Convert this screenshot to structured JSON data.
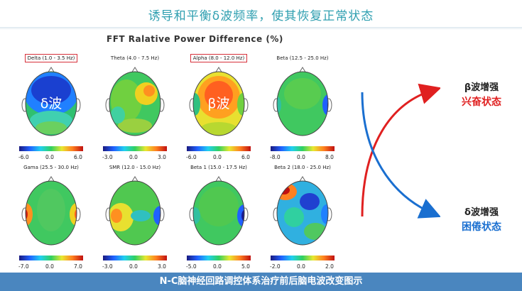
{
  "header": {
    "title": "诱导和平衡δ波频率，使其恢复正常状态"
  },
  "figure": {
    "title": "FFT Ralative Power Difference (%)"
  },
  "panels": [
    {
      "label": "Delta (1.0 - 3.5 Hz)",
      "boxed": true,
      "overlay": "δ波",
      "ticks": [
        "-6.0",
        "0.0",
        "6.0"
      ]
    },
    {
      "label": "Theta (4.0 - 7.5 Hz)",
      "boxed": false,
      "overlay": "",
      "ticks": [
        "-3.0",
        "0.0",
        "3.0"
      ]
    },
    {
      "label": "Alpha (8.0 - 12.0 Hz)",
      "boxed": true,
      "overlay": "β波",
      "ticks": [
        "-6.0",
        "0.0",
        "6.0"
      ]
    },
    {
      "label": "Beta (12.5 - 25.0 Hz)",
      "boxed": false,
      "overlay": "",
      "ticks": [
        "-8.0",
        "0.0",
        "8.0"
      ]
    },
    {
      "label": "Gama (25.5 - 30.0 Hz)",
      "boxed": false,
      "overlay": "",
      "ticks": [
        "-7.0",
        "0.0",
        "7.0"
      ]
    },
    {
      "label": "SMR (12.0 - 15.0 Hz)",
      "boxed": false,
      "overlay": "",
      "ticks": [
        "-3.0",
        "0.0",
        "3.0"
      ]
    },
    {
      "label": "Beta 1 (15.0 - 17.5 Hz)",
      "boxed": false,
      "overlay": "",
      "ticks": [
        "-5.0",
        "0.0",
        "5.0"
      ]
    },
    {
      "label": "Beta 2 (18.0 - 25.0 Hz)",
      "boxed": false,
      "overlay": "",
      "ticks": [
        "-2.0",
        "0.0",
        "2.0"
      ]
    }
  ],
  "states": {
    "beta": {
      "line1": "β波增强",
      "line2": "兴奋状态",
      "color": "#e02020"
    },
    "delta": {
      "line1": "δ波增强",
      "line2": "困倦状态",
      "color": "#1a6fd0"
    }
  },
  "footer": {
    "caption": "N-C脑神经回路调控体系治疗前后脑电波改变图示"
  }
}
